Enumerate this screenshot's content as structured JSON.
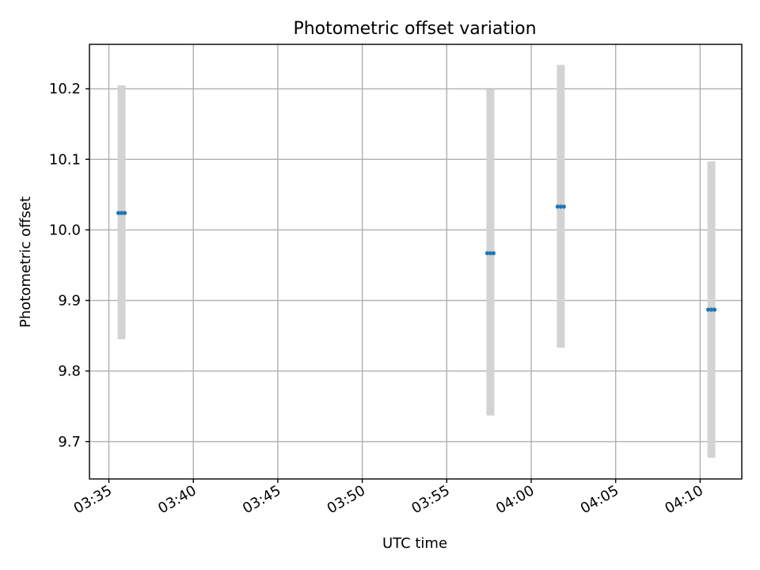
{
  "chart_data": {
    "type": "scatter",
    "title": "Photometric offset variation",
    "xlabel": "UTC time",
    "ylabel": "Photometric offset",
    "x_ticks": [
      "03:35",
      "03:40",
      "03:45",
      "03:50",
      "03:55",
      "04:00",
      "04:05",
      "04:10"
    ],
    "y_ticks": [
      "9.7",
      "9.8",
      "9.9",
      "10.0",
      "10.1",
      "10.2"
    ],
    "xlim": [
      "03:33:51",
      "04:12:28"
    ],
    "ylim": [
      9.647,
      10.263
    ],
    "grid": true,
    "points": [
      {
        "x": "03:35:45",
        "y": 10.024,
        "err_low": 9.845,
        "err_high": 10.205
      },
      {
        "x": "03:57:35",
        "y": 9.967,
        "err_low": 9.737,
        "err_high": 10.199
      },
      {
        "x": "04:01:45",
        "y": 10.033,
        "err_low": 9.833,
        "err_high": 10.234
      },
      {
        "x": "04:10:40",
        "y": 9.887,
        "err_low": 9.677,
        "err_high": 10.097
      }
    ],
    "colors": {
      "marker": "#1f77b4",
      "errorbar": "#d3d3d3"
    }
  }
}
